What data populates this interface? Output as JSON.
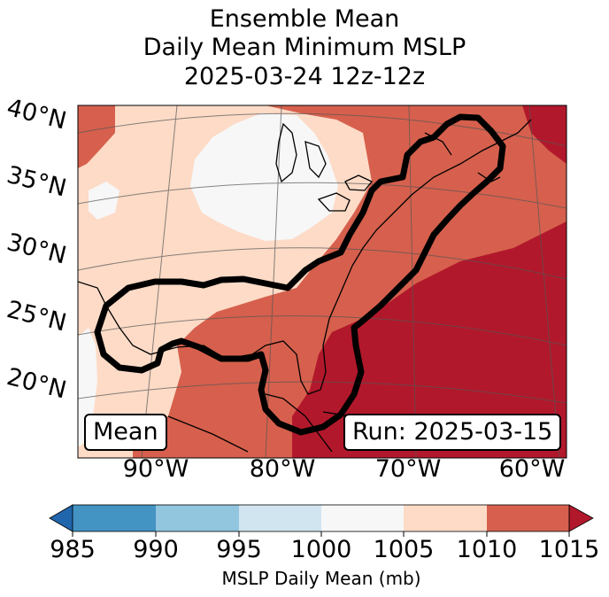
{
  "title": {
    "line1": "Ensemble Mean",
    "line2": "Daily Mean Minimum MSLP",
    "line3": "2025-03-24 12z-12z"
  },
  "map": {
    "lat_labels": [
      "40°N",
      "35°N",
      "30°N",
      "25°N",
      "20°N"
    ],
    "lon_labels": [
      "90°W",
      "80°W",
      "70°W",
      "60°W"
    ],
    "mean_label": "Mean",
    "run_label": "Run: 2025-03-15",
    "fill_levels": [
      {
        "range": "1000-1005",
        "color": "#f7f7f7"
      },
      {
        "range": "1005-1010",
        "color": "#fddbc7"
      },
      {
        "range": "1010-1015",
        "color": "#d6604d"
      },
      {
        "range": ">1015",
        "color": "#b2182b"
      }
    ],
    "contour_color": "#000000"
  },
  "colorbar": {
    "label": "MSLP Daily Mean (mb)",
    "ticks": [
      "985",
      "990",
      "995",
      "1000",
      "1005",
      "1010",
      "1015"
    ],
    "colors": [
      "#4393c3",
      "#92c5de",
      "#d1e5f0",
      "#f7f7f7",
      "#fddbc7",
      "#d6604d"
    ],
    "under_color": "#2166ac",
    "over_color": "#b2182b"
  }
}
